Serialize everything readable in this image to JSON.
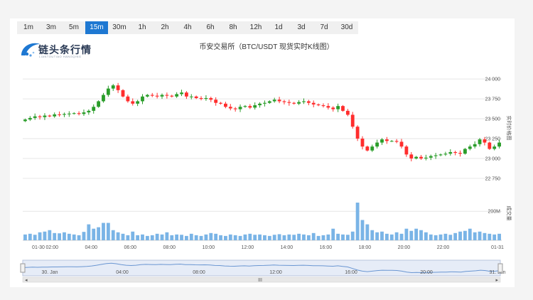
{
  "toolbar": {
    "intervals": [
      "1m",
      "3m",
      "5m",
      "15m",
      "30m",
      "1h",
      "2h",
      "4h",
      "6h",
      "8h",
      "12h",
      "1d",
      "3d",
      "7d",
      "30d"
    ],
    "active_interval": "15m"
  },
  "logo": {
    "name": "链头条行情",
    "subtitle": "LIANTOUTIAO HANGQING"
  },
  "colors": {
    "up": "#ff2d2d",
    "down": "#2a9d2a",
    "volume": "#7ab4e6",
    "accent": "#1e78d2"
  },
  "chart_data": {
    "type": "candlestick",
    "title": "币安交易所（BTC/USDT 现货实时K线图）",
    "price_axis_label": "实时价格图",
    "volume_axis_label": "成交量",
    "y_ticks": [
      "24 000",
      "23 750",
      "23 500",
      "23 250",
      "23 000",
      "22 750"
    ],
    "y_tick_values": [
      24000,
      23750,
      23500,
      23250,
      23000,
      22750
    ],
    "ylim": [
      22650,
      24100
    ],
    "volume_tick": "200M",
    "volume_tick_value": 200,
    "volume_max": 260,
    "x_ticks": [
      "01-30",
      "02:00",
      "04:00",
      "06:00",
      "08:00",
      "10:00",
      "12:00",
      "14:00",
      "16:00",
      "18:00",
      "20:00",
      "22:00",
      "01-31"
    ],
    "x_tick_indices": [
      0,
      6,
      14,
      22,
      30,
      38,
      46,
      54,
      62,
      70,
      78,
      86,
      94
    ],
    "navigator_ticks": [
      "30. Jan",
      "04:00",
      "08:00",
      "12:00",
      "16:00",
      "20:00",
      "31. Jan"
    ],
    "navigator_scroll_mark": "III",
    "close": [
      23490,
      23510,
      23530,
      23520,
      23540,
      23530,
      23555,
      23550,
      23560,
      23565,
      23570,
      23560,
      23580,
      23600,
      23650,
      23720,
      23800,
      23880,
      23920,
      23860,
      23780,
      23720,
      23690,
      23720,
      23780,
      23800,
      23790,
      23780,
      23800,
      23790,
      23780,
      23810,
      23830,
      23780,
      23780,
      23760,
      23750,
      23760,
      23740,
      23700,
      23690,
      23650,
      23630,
      23620,
      23650,
      23660,
      23640,
      23670,
      23690,
      23700,
      23720,
      23740,
      23720,
      23710,
      23700,
      23690,
      23710,
      23720,
      23700,
      23680,
      23670,
      23660,
      23640,
      23620,
      23660,
      23600,
      23550,
      23400,
      23250,
      23150,
      23100,
      23150,
      23200,
      23240,
      23220,
      23220,
      23210,
      23150,
      23050,
      23000,
      23020,
      23000,
      23010,
      23030,
      23040,
      23050,
      23060,
      23080,
      23070,
      23060,
      23120,
      23150,
      23180,
      23240,
      23200,
      23120,
      23150,
      23200
    ],
    "volume": [
      40,
      45,
      38,
      55,
      60,
      70,
      50,
      48,
      55,
      45,
      40,
      35,
      58,
      110,
      80,
      90,
      120,
      120,
      70,
      55,
      45,
      35,
      60,
      35,
      40,
      30,
      35,
      45,
      40,
      55,
      35,
      40,
      38,
      30,
      45,
      35,
      30,
      40,
      50,
      45,
      35,
      30,
      40,
      35,
      30,
      40,
      45,
      38,
      40,
      35,
      30,
      38,
      42,
      35,
      40,
      38,
      45,
      40,
      35,
      50,
      30,
      35,
      40,
      80,
      45,
      40,
      38,
      60,
      260,
      140,
      110,
      70,
      55,
      60,
      45,
      40,
      55,
      45,
      80,
      65,
      80,
      70,
      55,
      40,
      35,
      40,
      45,
      38,
      50,
      60,
      65,
      80,
      55,
      60,
      50,
      45,
      40,
      45
    ]
  }
}
